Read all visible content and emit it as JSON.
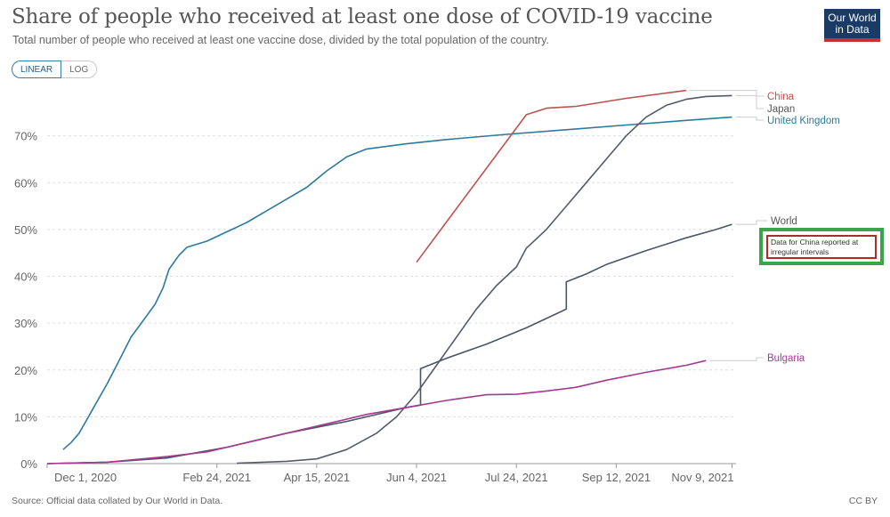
{
  "header": {
    "title": "Share of people who received at least one dose of COVID-19 vaccine",
    "subtitle": "Total number of people who received at least one vaccine dose, divided by the total population of the country.",
    "logo_line1": "Our World",
    "logo_line2": "in Data"
  },
  "controls": {
    "linear_label": "LINEAR",
    "log_label": "LOG"
  },
  "footer": {
    "source": "Source: Official data collated by Our World in Data.",
    "license": "CC BY"
  },
  "annotation": {
    "text": "Data for China reported at irregular intervals"
  },
  "colors": {
    "China": "#c0504d",
    "Japan": "#555a6b",
    "United Kingdom": "#2c7a9e",
    "World": "#4a5566",
    "Bulgaria": "#a33a8f",
    "grid": "#dddddd",
    "accent_box": "#3aa54a",
    "accent_inner": "#b02a2a"
  },
  "chart_data": {
    "type": "line",
    "title": "Share of people who received at least one dose of COVID-19 vaccine",
    "xlabel": "",
    "ylabel": "",
    "x_range": [
      0,
      345
    ],
    "ylim": [
      0,
      80
    ],
    "y_ticks": [
      0,
      10,
      20,
      30,
      40,
      50,
      60,
      70
    ],
    "y_tick_labels": [
      "0%",
      "10%",
      "20%",
      "30%",
      "40%",
      "50%",
      "60%",
      "70%"
    ],
    "x_ticks": [
      0,
      85,
      135,
      185,
      235,
      285,
      343
    ],
    "x_tick_labels": [
      "Dec 1, 2020",
      "Feb 24, 2021",
      "Apr 15, 2021",
      "Jun 4, 2021",
      "Jul 24, 2021",
      "Sep 12, 2021",
      "Nov 9, 2021"
    ],
    "legend_placement": "right (direct labels)",
    "series": [
      {
        "name": "United Kingdom",
        "points": [
          [
            8,
            3
          ],
          [
            12,
            4.5
          ],
          [
            16,
            6.5
          ],
          [
            20,
            9.5
          ],
          [
            24,
            12.5
          ],
          [
            30,
            17
          ],
          [
            36,
            22
          ],
          [
            42,
            27
          ],
          [
            48,
            30.5
          ],
          [
            54,
            34
          ],
          [
            58,
            37.5
          ],
          [
            61,
            41.5
          ],
          [
            66,
            44.5
          ],
          [
            70,
            46.2
          ],
          [
            80,
            47.5
          ],
          [
            90,
            49.5
          ],
          [
            100,
            51.5
          ],
          [
            110,
            54
          ],
          [
            120,
            56.5
          ],
          [
            130,
            59
          ],
          [
            140,
            62.5
          ],
          [
            150,
            65.5
          ],
          [
            160,
            67.2
          ],
          [
            180,
            68.3
          ],
          [
            200,
            69.2
          ],
          [
            230,
            70.3
          ],
          [
            260,
            71.3
          ],
          [
            290,
            72.3
          ],
          [
            320,
            73.3
          ],
          [
            343,
            74
          ]
        ]
      },
      {
        "name": "China",
        "points": [
          [
            185,
            43
          ],
          [
            240,
            74.5
          ],
          [
            250,
            75.9
          ],
          [
            265,
            76.3
          ],
          [
            290,
            78
          ],
          [
            320,
            79.7
          ]
        ]
      },
      {
        "name": "Japan",
        "points": [
          [
            95,
            0.1
          ],
          [
            120,
            0.5
          ],
          [
            135,
            1
          ],
          [
            150,
            3
          ],
          [
            165,
            6.5
          ],
          [
            175,
            10
          ],
          [
            185,
            15
          ],
          [
            195,
            21
          ],
          [
            205,
            27
          ],
          [
            215,
            33
          ],
          [
            225,
            38
          ],
          [
            235,
            42
          ],
          [
            240,
            46
          ],
          [
            250,
            50
          ],
          [
            260,
            55
          ],
          [
            270,
            60
          ],
          [
            280,
            65
          ],
          [
            290,
            70
          ],
          [
            300,
            74
          ],
          [
            310,
            76.5
          ],
          [
            320,
            77.8
          ],
          [
            330,
            78.4
          ],
          [
            343,
            78.6
          ]
        ]
      },
      {
        "name": "World",
        "points": [
          [
            0,
            0
          ],
          [
            30,
            0.3
          ],
          [
            60,
            1.2
          ],
          [
            90,
            3.5
          ],
          [
            120,
            6.5
          ],
          [
            150,
            9
          ],
          [
            180,
            12
          ],
          [
            187,
            12.5
          ],
          [
            187,
            20.3
          ],
          [
            200,
            22.5
          ],
          [
            220,
            25.5
          ],
          [
            240,
            29
          ],
          [
            255,
            32
          ],
          [
            260,
            33
          ],
          [
            260,
            38.8
          ],
          [
            270,
            40.5
          ],
          [
            280,
            42.5
          ],
          [
            300,
            45.5
          ],
          [
            320,
            48.2
          ],
          [
            335,
            50
          ],
          [
            343,
            51.1
          ]
        ]
      },
      {
        "name": "Bulgaria",
        "points": [
          [
            0,
            0
          ],
          [
            30,
            0.3
          ],
          [
            60,
            1.5
          ],
          [
            80,
            2.5
          ],
          [
            90,
            3.5
          ],
          [
            100,
            4.5
          ],
          [
            120,
            6.5
          ],
          [
            140,
            8.5
          ],
          [
            160,
            10.5
          ],
          [
            180,
            12
          ],
          [
            200,
            13.5
          ],
          [
            220,
            14.7
          ],
          [
            235,
            14.8
          ],
          [
            250,
            15.5
          ],
          [
            265,
            16.3
          ],
          [
            280,
            17.8
          ],
          [
            300,
            19.5
          ],
          [
            320,
            21
          ],
          [
            330,
            22
          ]
        ]
      }
    ],
    "labels": [
      "China",
      "Japan",
      "United Kingdom",
      "World",
      "Bulgaria"
    ]
  }
}
